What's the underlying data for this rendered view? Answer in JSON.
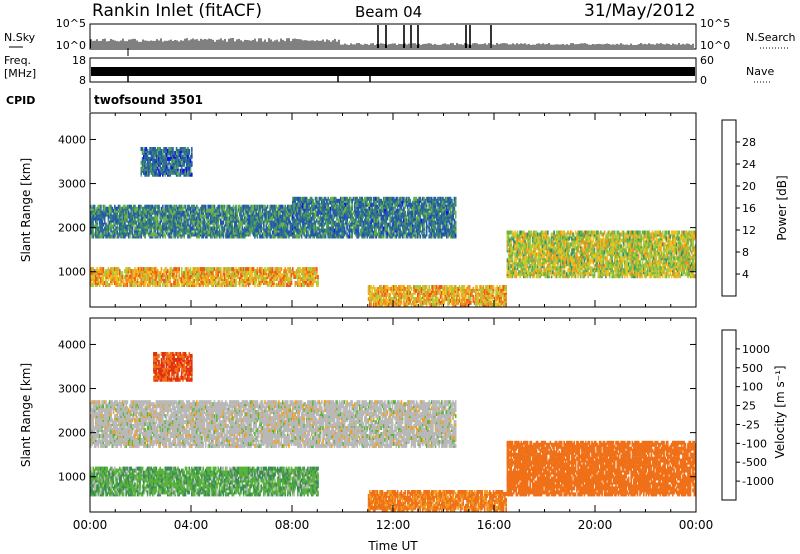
{
  "header": {
    "station": "Rankin Inlet (fitACF)",
    "beam": "Beam 04",
    "date": "31/May/2012"
  },
  "strips": {
    "nsky_label": "N.Sky",
    "nsky_ticks": [
      "10^5",
      "10^0"
    ],
    "nsearch_label": "N.Search",
    "nsearch_ticks": [
      "10^5",
      "10^0"
    ],
    "freq_label_1": "Freq.",
    "freq_label_2": "[MHz]",
    "freq_ticks": [
      "18",
      "8"
    ],
    "nave_label": "Nave",
    "nave_ticks": [
      "60",
      "0"
    ],
    "cpid_label": "CPID",
    "cpid_value": "twofsound 3501"
  },
  "chart_data": [
    {
      "type": "heatmap",
      "name": "power",
      "ylabel": "Slant Range [km]",
      "ylim": [
        200,
        4600
      ],
      "yticks": [
        "1000",
        "2000",
        "3000",
        "4000"
      ],
      "xlim": [
        0,
        24
      ],
      "colorbar": {
        "label": "Power [dB]",
        "range": [
          0,
          32
        ],
        "tick_labels": [
          "4",
          "8",
          "12",
          "16",
          "20",
          "24",
          "28"
        ],
        "colors": [
          "#1010e8",
          "#2050b8",
          "#2a6a96",
          "#3c8a6a",
          "#6cb44a",
          "#a8cc40",
          "#f2c020",
          "#f4901a",
          "#f05818",
          "#e01010"
        ]
      },
      "echo_bands": [
        {
          "t0": 0.0,
          "t1": 9.0,
          "r0": 700,
          "r1": 1100,
          "power": 22
        },
        {
          "t0": 0.0,
          "t1": 8.0,
          "r0": 1800,
          "r1": 2500,
          "power": 10
        },
        {
          "t0": 8.0,
          "t1": 14.5,
          "r0": 1800,
          "r1": 2700,
          "power": 9
        },
        {
          "t0": 11.0,
          "t1": 16.5,
          "r0": 250,
          "r1": 700,
          "power": 22
        },
        {
          "t0": 16.5,
          "t1": 24.0,
          "r0": 900,
          "r1": 1900,
          "power": 18
        },
        {
          "t0": 2.0,
          "t1": 4.0,
          "r0": 3200,
          "r1": 3800,
          "power": 8
        }
      ]
    },
    {
      "type": "heatmap",
      "name": "velocity",
      "ylabel": "Slant Range [km]",
      "xlabel": "Time UT",
      "ylim": [
        200,
        4600
      ],
      "yticks": [
        "1000",
        "2000",
        "3000",
        "4000"
      ],
      "xlim": [
        0,
        24
      ],
      "xticks": [
        "00:00",
        "04:00",
        "08:00",
        "12:00",
        "16:00",
        "20:00",
        "00:00"
      ],
      "colorbar": {
        "label": "Velocity [m s⁻¹]",
        "tick_labels": [
          "1000",
          "500",
          "100",
          "25",
          "-25",
          "-100",
          "-500",
          "-1000"
        ],
        "colors": [
          "#2040c0",
          "#3a78b0",
          "#3c8a5a",
          "#58b438",
          "#b8b8b8",
          "#f0a020",
          "#f07018",
          "#e03010",
          "#d01010"
        ]
      },
      "echo_bands": [
        {
          "t0": 0.0,
          "t1": 9.0,
          "r0": 600,
          "r1": 1200,
          "velocity": 80
        },
        {
          "t0": 0.0,
          "t1": 14.5,
          "r0": 1700,
          "r1": 2700,
          "velocity": 0
        },
        {
          "t0": 11.0,
          "t1": 16.5,
          "r0": 250,
          "r1": 700,
          "velocity": -150
        },
        {
          "t0": 16.5,
          "t1": 24.0,
          "r0": 600,
          "r1": 1800,
          "velocity": -300
        },
        {
          "t0": 2.5,
          "t1": 4.0,
          "r0": 3200,
          "r1": 3800,
          "velocity": -500
        }
      ]
    }
  ]
}
